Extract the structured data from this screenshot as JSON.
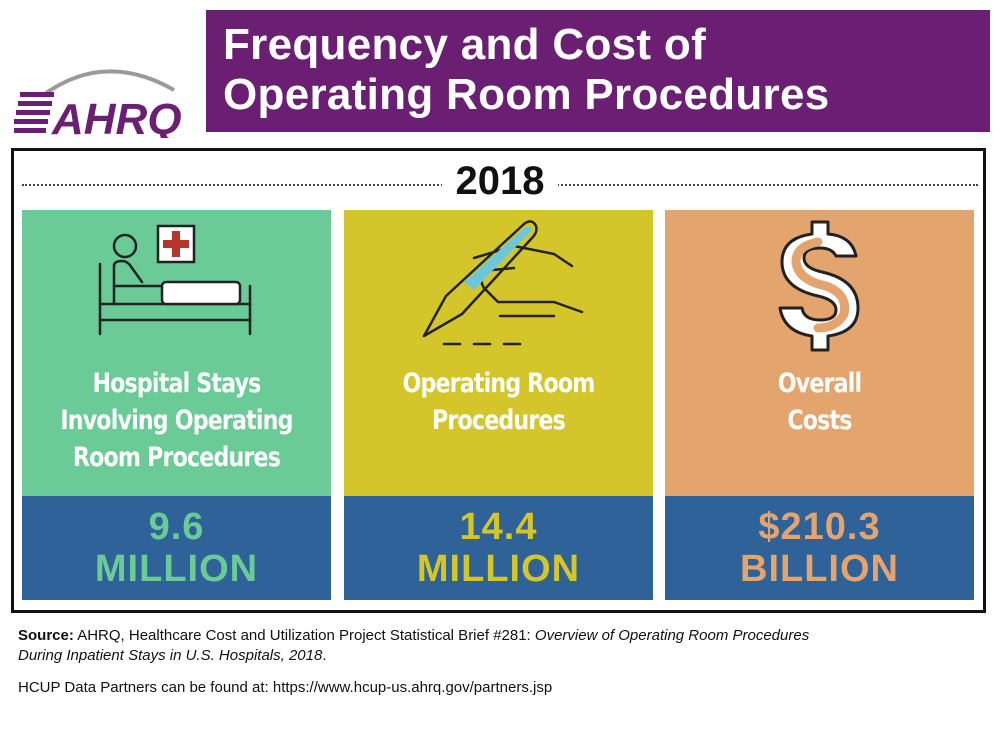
{
  "header": {
    "logo_text": "AHRQ",
    "title_line1": "Frequency and Cost of",
    "title_line2": "Operating Room Procedures"
  },
  "year": "2018",
  "cards": [
    {
      "label": [
        "Hospital Stays",
        "Involving Operating",
        "Room Procedures"
      ],
      "value_number": "9.6",
      "value_unit": "MILLION",
      "icon": "hospital-bed-icon",
      "color": "#6acb96"
    },
    {
      "label": [
        "Operating Room",
        "Procedures"
      ],
      "value_number": "14.4",
      "value_unit": "MILLION",
      "icon": "scalpel-hand-icon",
      "color": "#d4c62a"
    },
    {
      "label": [
        "Overall",
        "Costs"
      ],
      "value_number": "$210.3",
      "value_unit": "BILLION",
      "icon": "dollar-sign-icon",
      "color": "#e3a46d"
    }
  ],
  "value_band_color": "#2e6298",
  "title_banner_color": "#6a1f72",
  "footer": {
    "source_label": "Source:",
    "source_text": " AHRQ, Healthcare Cost and Utilization Project Statistical Brief #281: ",
    "source_title_1": "Overview of Operating Room Procedures",
    "source_title_2": "During Inpatient Stays in U.S. Hospitals, 2018",
    "source_end": ".",
    "partners": "HCUP Data Partners can be found at: https://www.hcup-us.ahrq.gov/partners.jsp"
  }
}
